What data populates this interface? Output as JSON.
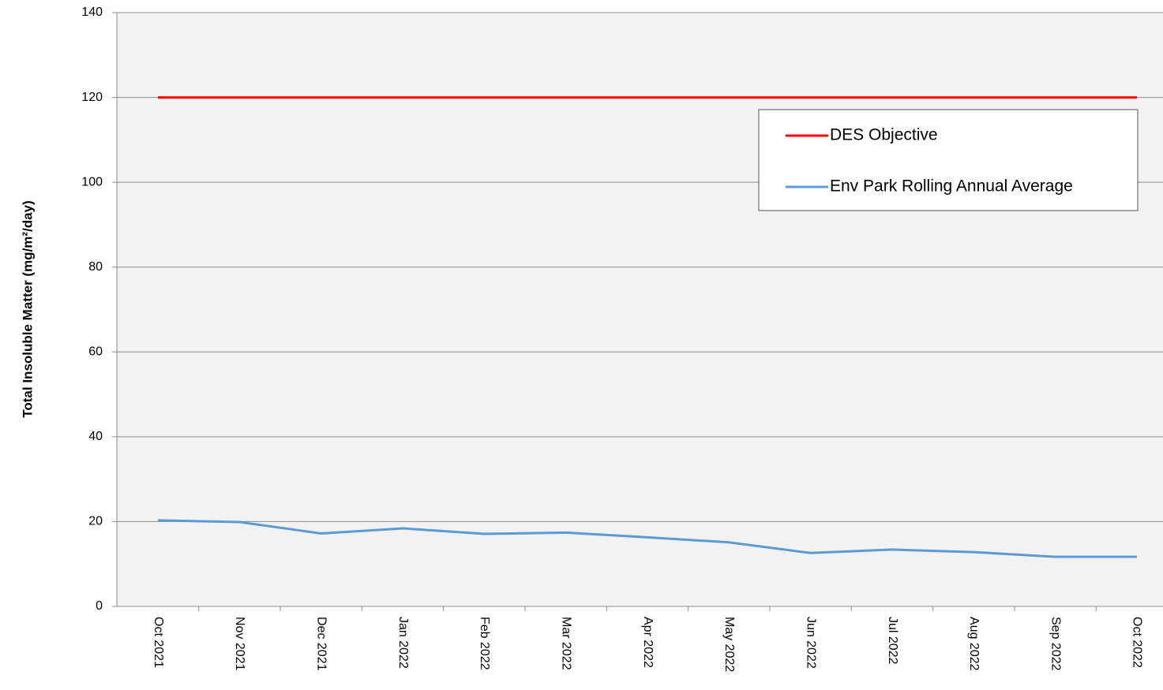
{
  "chart_data": {
    "type": "line",
    "y_label": "Total Insoluble Matter (mg/m²/day)",
    "categories": [
      "Oct 2021",
      "Nov 2021",
      "Dec 2021",
      "Jan 2022",
      "Feb 2022",
      "Mar 2022",
      "Apr 2022",
      "May 2022",
      "Jun 2022",
      "Jul 2022",
      "Aug 2022",
      "Sep 2022",
      "Oct 2022"
    ],
    "series": [
      {
        "name": "DES Objective",
        "color": "#ff0000",
        "values": [
          120,
          120,
          120,
          120,
          120,
          120,
          120,
          120,
          120,
          120,
          120,
          120,
          120
        ]
      },
      {
        "name": "Env Park Rolling Annual Average",
        "color": "#5b9bd5",
        "values": [
          20.3,
          19.9,
          17.2,
          18.4,
          17.1,
          17.4,
          16.3,
          15.1,
          12.6,
          13.4,
          12.8,
          11.7,
          11.7
        ]
      }
    ],
    "ylim": [
      0,
      140
    ],
    "yticks": [
      0,
      20,
      40,
      60,
      80,
      100,
      120,
      140
    ],
    "grid": true,
    "legend": "upper right"
  }
}
